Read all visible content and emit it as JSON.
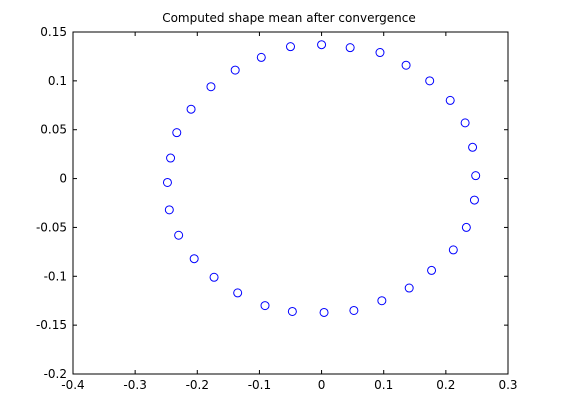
{
  "chart_data": {
    "type": "scatter",
    "title": "Computed shape mean after convergence",
    "xlabel": "",
    "ylabel": "",
    "xlim": [
      -0.4,
      0.3
    ],
    "ylim": [
      -0.2,
      0.15
    ],
    "xticks": [
      "-0.4",
      "-0.3",
      "-0.2",
      "-0.1",
      "0",
      "0.1",
      "0.2",
      "0.3"
    ],
    "yticks": [
      "-0.2",
      "-0.15",
      "-0.1",
      "-0.05",
      "0",
      "0.05",
      "0.1",
      "0.15"
    ],
    "grid": false,
    "marker": "circle-open",
    "marker_color": "#0000ff",
    "series": [
      {
        "x": [
          0.0,
          0.046,
          0.094,
          0.136,
          0.174,
          0.207,
          0.231,
          0.243,
          0.248,
          0.246,
          0.233,
          0.212,
          0.177,
          0.141,
          0.097,
          0.052,
          0.004,
          -0.047,
          -0.091,
          -0.135,
          -0.173,
          -0.205,
          -0.23,
          -0.245,
          -0.248,
          -0.243,
          -0.233,
          -0.21,
          -0.178,
          -0.139,
          -0.097,
          -0.05
        ],
        "y": [
          0.137,
          0.134,
          0.129,
          0.116,
          0.1,
          0.08,
          0.057,
          0.032,
          0.003,
          -0.022,
          -0.05,
          -0.073,
          -0.094,
          -0.112,
          -0.125,
          -0.135,
          -0.137,
          -0.136,
          -0.13,
          -0.117,
          -0.101,
          -0.082,
          -0.058,
          -0.032,
          -0.004,
          0.021,
          0.047,
          0.071,
          0.094,
          0.111,
          0.124,
          0.135
        ]
      }
    ]
  }
}
